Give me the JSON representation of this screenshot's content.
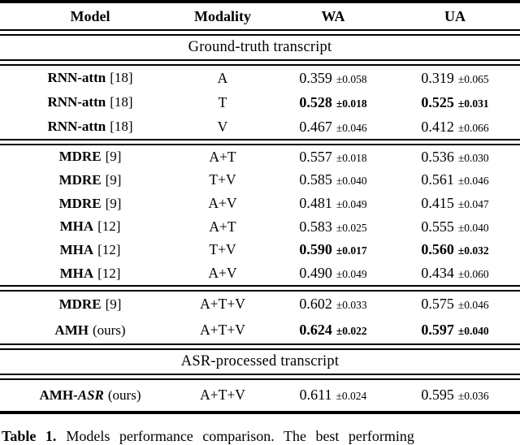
{
  "header": {
    "model": "Model",
    "modality": "Modality",
    "wa": "WA",
    "ua": "UA"
  },
  "sections": {
    "ground_truth": "Ground-truth transcript",
    "asr": "ASR-processed transcript"
  },
  "rows": [
    {
      "name": "RNN-attn",
      "ref": "[18]",
      "modality": "A",
      "wa": "0.359",
      "wa_pm": "±0.058",
      "ua": "0.319",
      "ua_pm": "±0.065",
      "best": false
    },
    {
      "name": "RNN-attn",
      "ref": "[18]",
      "modality": "T",
      "wa": "0.528",
      "wa_pm": "±0.018",
      "ua": "0.525",
      "ua_pm": "±0.031",
      "best": true
    },
    {
      "name": "RNN-attn",
      "ref": "[18]",
      "modality": "V",
      "wa": "0.467",
      "wa_pm": "±0.046",
      "ua": "0.412",
      "ua_pm": "±0.066",
      "best": false
    },
    {
      "name": "MDRE",
      "ref": "[9]",
      "modality": "A+T",
      "wa": "0.557",
      "wa_pm": "±0.018",
      "ua": "0.536",
      "ua_pm": "±0.030",
      "best": false
    },
    {
      "name": "MDRE",
      "ref": "[9]",
      "modality": "T+V",
      "wa": "0.585",
      "wa_pm": "±0.040",
      "ua": "0.561",
      "ua_pm": "±0.046",
      "best": false
    },
    {
      "name": "MDRE",
      "ref": "[9]",
      "modality": "A+V",
      "wa": "0.481",
      "wa_pm": "±0.049",
      "ua": "0.415",
      "ua_pm": "±0.047",
      "best": false
    },
    {
      "name": "MHA",
      "ref": "[12]",
      "modality": "A+T",
      "wa": "0.583",
      "wa_pm": "±0.025",
      "ua": "0.555",
      "ua_pm": "±0.040",
      "best": false
    },
    {
      "name": "MHA",
      "ref": "[12]",
      "modality": "T+V",
      "wa": "0.590",
      "wa_pm": "±0.017",
      "ua": "0.560",
      "ua_pm": "±0.032",
      "best": true
    },
    {
      "name": "MHA",
      "ref": "[12]",
      "modality": "A+V",
      "wa": "0.490",
      "wa_pm": "±0.049",
      "ua": "0.434",
      "ua_pm": "±0.060",
      "best": false
    },
    {
      "name": "MDRE",
      "ref": "[9]",
      "modality": "A+T+V",
      "wa": "0.602",
      "wa_pm": "±0.033",
      "ua": "0.575",
      "ua_pm": "±0.046",
      "best": false
    },
    {
      "name": "AMH",
      "ref": "(ours)",
      "modality": "A+T+V",
      "wa": "0.624",
      "wa_pm": "±0.022",
      "ua": "0.597",
      "ua_pm": "±0.040",
      "best": true
    },
    {
      "name": "AMH-",
      "name_italic": "ASR",
      "ref": "(ours)",
      "modality": "A+T+V",
      "wa": "0.611",
      "wa_pm": "±0.024",
      "ua": "0.595",
      "ua_pm": "±0.036",
      "best": false
    }
  ],
  "caption": {
    "label": "Table 1.",
    "text": "Models performance comparison. The best performing"
  }
}
